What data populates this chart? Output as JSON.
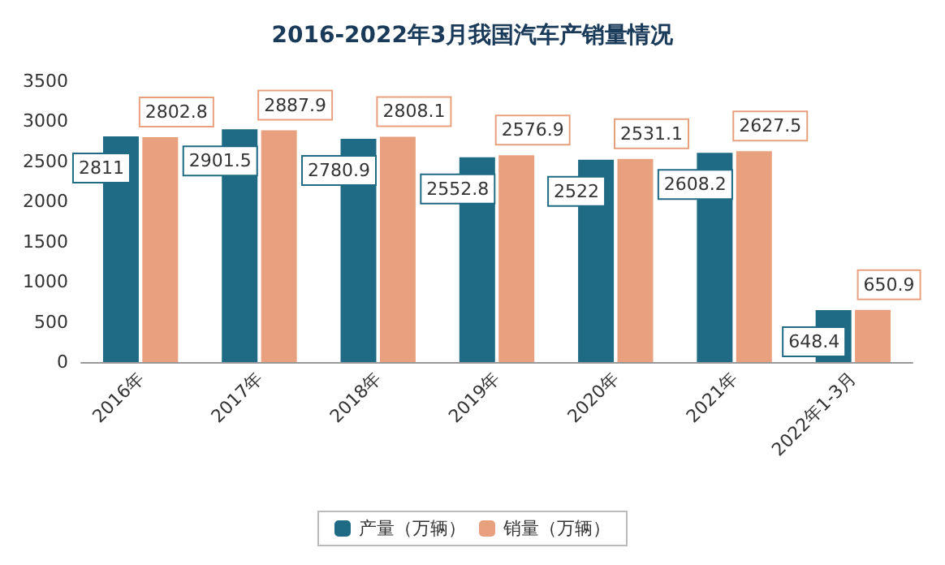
{
  "chart_data": {
    "type": "bar",
    "title": "2016-2022年3月我国汽车产销量情况",
    "categories": [
      "2016年",
      "2017年",
      "2018年",
      "2019年",
      "2020年",
      "2021年",
      "2022年1-3月"
    ],
    "series": [
      {
        "name": "产量（万辆）",
        "color": "#1f6b85",
        "values": [
          2811,
          2901.5,
          2780.9,
          2552.8,
          2522,
          2608.2,
          648.4
        ]
      },
      {
        "name": "销量（万辆）",
        "color": "#e9a07e",
        "values": [
          2802.8,
          2887.9,
          2808.1,
          2576.9,
          2531.1,
          2627.5,
          650.9
        ]
      }
    ],
    "ylim": [
      0,
      3500
    ],
    "yticks": [
      0,
      500,
      1000,
      1500,
      2000,
      2500,
      3000,
      3500
    ],
    "data_labels": true,
    "legend": "bottom"
  }
}
